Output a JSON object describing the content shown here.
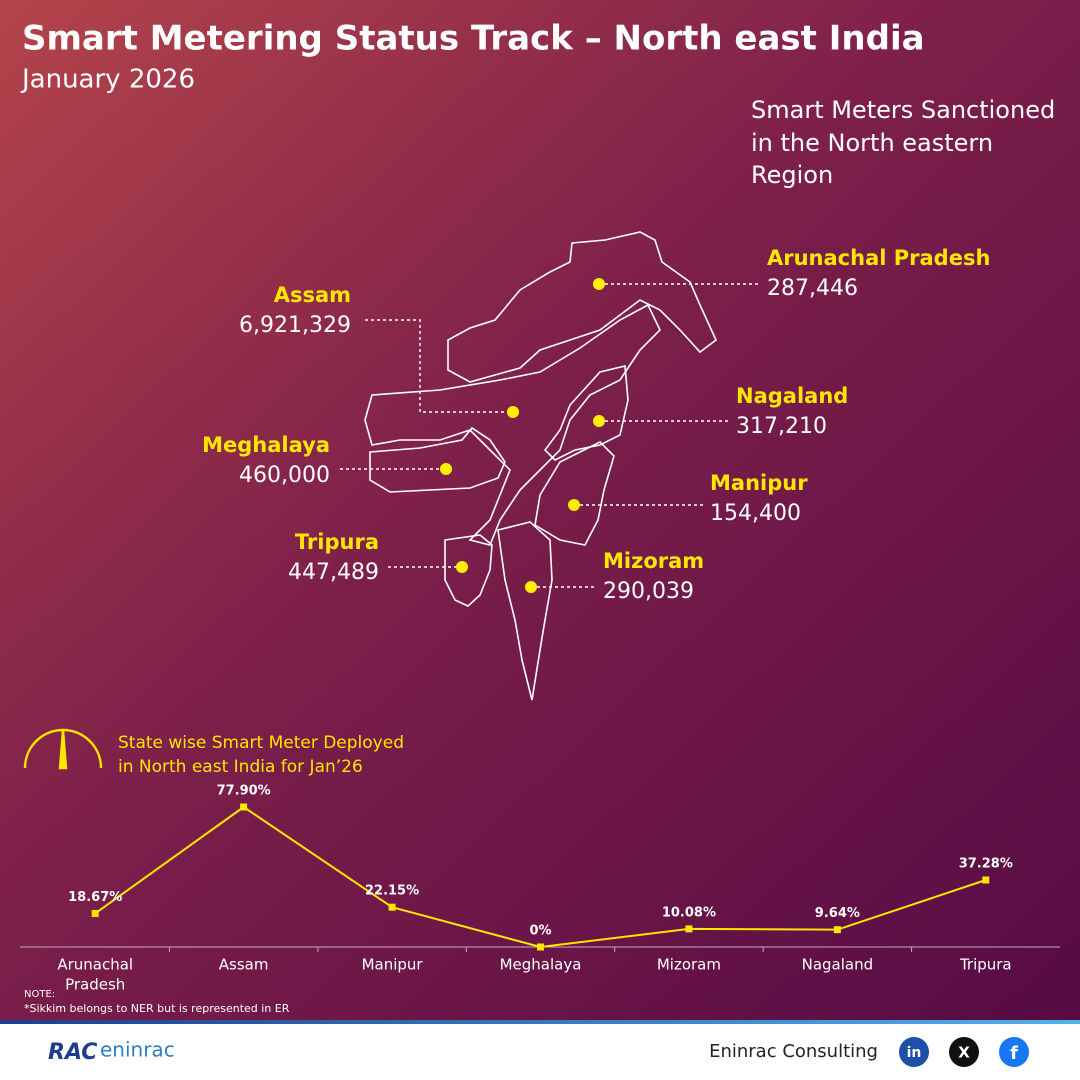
{
  "header": {
    "title": "Smart Metering Status Track – North east India",
    "subtitle": "January 2026"
  },
  "map": {
    "title": [
      "Smart Meters Sanctioned",
      "in the North eastern",
      "Region"
    ],
    "states": [
      {
        "name": "Arunachal Pradesh",
        "value": "287,446"
      },
      {
        "name": "Assam",
        "value": "6,921,329"
      },
      {
        "name": "Nagaland",
        "value": "317,210"
      },
      {
        "name": "Meghalaya",
        "value": "460,000"
      },
      {
        "name": "Manipur",
        "value": "154,400"
      },
      {
        "name": "Tripura",
        "value": "447,489"
      },
      {
        "name": "Mizoram",
        "value": "290,039"
      }
    ]
  },
  "chart_data": {
    "type": "line",
    "title": [
      "State wise Smart Meter Deployed",
      "in North east India for Jan’26"
    ],
    "categories": [
      [
        "Arunachal",
        "Pradesh"
      ],
      [
        "Assam"
      ],
      [
        "Manipur"
      ],
      [
        "Meghalaya"
      ],
      [
        "Mizoram"
      ],
      [
        "Nagaland"
      ],
      [
        "Tripura"
      ]
    ],
    "values": [
      18.67,
      77.9,
      22.15,
      0,
      10.08,
      9.64,
      37.28
    ],
    "value_labels": [
      "18.67%",
      "77.90%",
      "22.15%",
      "0%",
      "10.08%",
      "9.64%",
      "37.28%"
    ],
    "color": "#ffe600"
  },
  "note": {
    "label": "NOTE:",
    "text": "*Sikkim belongs to NER but is represented in ER"
  },
  "footer": {
    "logo": [
      "RAC",
      "eninrac"
    ],
    "company": "Eninrac Consulting",
    "social": [
      "in",
      "X",
      "f"
    ]
  }
}
